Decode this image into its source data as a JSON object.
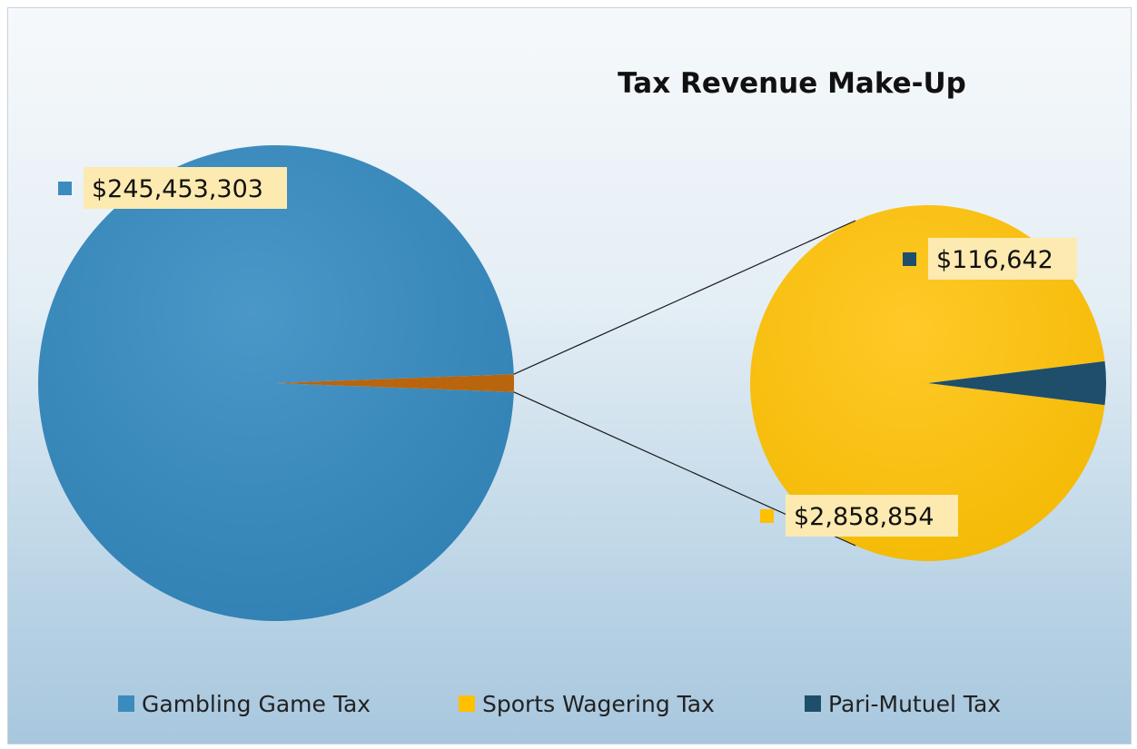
{
  "chart_data": {
    "type": "pie",
    "subtype": "pie-of-pie",
    "title": "Tax Revenue Make-Up",
    "slices": [
      {
        "name": "Gambling Game Tax",
        "value": 245453303,
        "label": "$245,453,303",
        "color": "#3b8bbf"
      },
      {
        "name": "Sports Wagering Tax",
        "value": 2858854,
        "label": "$2,858,854",
        "color": "#ffc000"
      },
      {
        "name": "Pari-Mutuel Tax",
        "value": 116642,
        "label": "$116,642",
        "color": "#1f4e6b"
      }
    ],
    "combined_slice_color": "#b8650e",
    "legend_position": "bottom"
  }
}
